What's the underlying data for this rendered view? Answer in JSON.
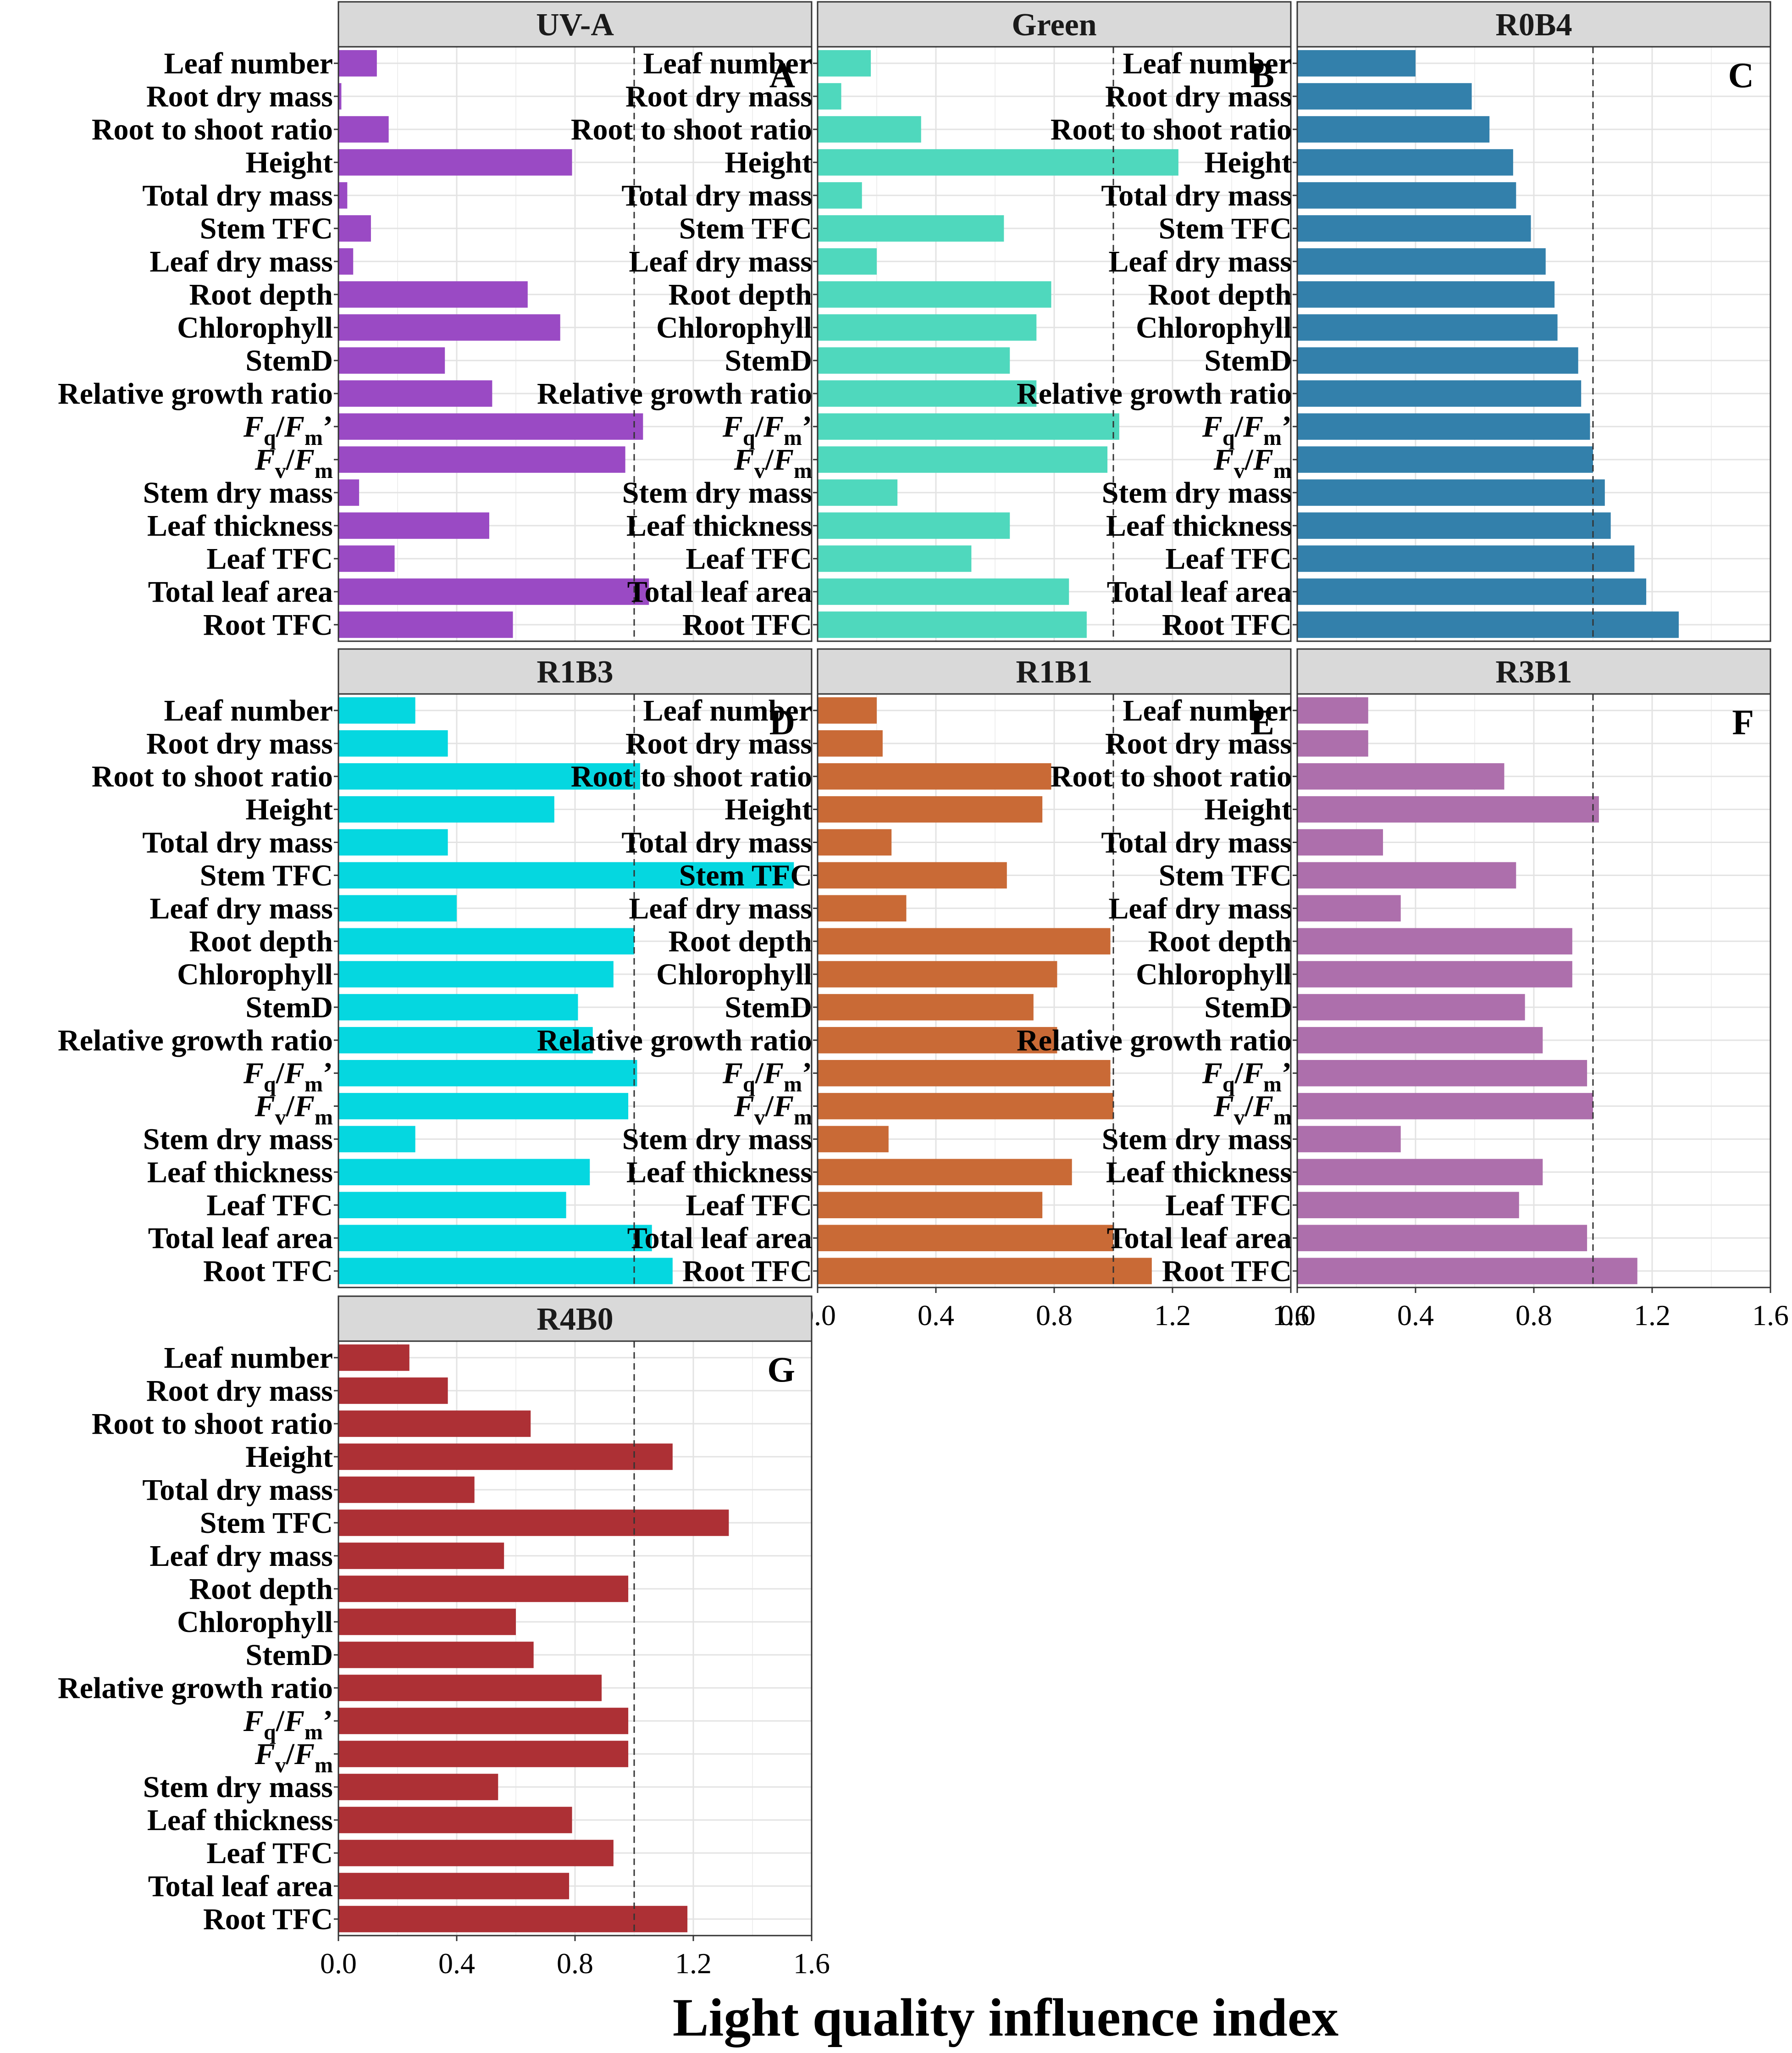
{
  "chart_data": {
    "type": "bar",
    "orientation": "horizontal",
    "xlabel": "Light quality influence index",
    "xlim": [
      0,
      1.6
    ],
    "xticks": [
      "0.0",
      "0.4",
      "0.8",
      "1.2",
      "1.6"
    ],
    "reference_line": 1.0,
    "categories": [
      {
        "text": "Leaf number"
      },
      {
        "text": "Root dry mass"
      },
      {
        "text": "Root to shoot ratio"
      },
      {
        "text": "Height"
      },
      {
        "text": "Total dry mass"
      },
      {
        "text": "Stem TFC"
      },
      {
        "text": "Leaf dry mass"
      },
      {
        "text": "Root depth"
      },
      {
        "text": "Chlorophyll"
      },
      {
        "text": "StemD"
      },
      {
        "text": "Relative growth ratio"
      },
      {
        "text": "Fq/Fm’",
        "main1": "F",
        "sub1": "q",
        "mid": "/",
        "main2": "F",
        "sub2": "m",
        "suffix": "’"
      },
      {
        "text": "Fv/Fm",
        "main1": "F",
        "sub1": "v",
        "mid": "/",
        "main2": "F",
        "sub2": "m",
        "suffix": ""
      },
      {
        "text": "Stem dry mass"
      },
      {
        "text": "Leaf thickness"
      },
      {
        "text": "Leaf TFC"
      },
      {
        "text": "Total leaf area"
      },
      {
        "text": "Root TFC"
      }
    ],
    "panels": [
      {
        "tag": "A",
        "title": "UV-A",
        "color": "#9a4ac4",
        "values": [
          0.13,
          0.01,
          0.17,
          0.79,
          0.03,
          0.11,
          0.05,
          0.64,
          0.75,
          0.36,
          0.52,
          1.03,
          0.97,
          0.07,
          0.51,
          0.19,
          1.05,
          0.59
        ]
      },
      {
        "tag": "B",
        "title": "Green",
        "color": "#4fd8bd",
        "values": [
          0.18,
          0.08,
          0.35,
          1.22,
          0.15,
          0.63,
          0.2,
          0.79,
          0.74,
          0.65,
          0.74,
          1.02,
          0.98,
          0.27,
          0.65,
          0.52,
          0.85,
          0.91
        ]
      },
      {
        "tag": "C",
        "title": "R0B4",
        "color": "#3380ab",
        "values": [
          0.4,
          0.59,
          0.65,
          0.73,
          0.74,
          0.79,
          0.84,
          0.87,
          0.88,
          0.95,
          0.96,
          0.99,
          1.0,
          1.04,
          1.06,
          1.14,
          1.18,
          1.29
        ]
      },
      {
        "tag": "D",
        "title": "R1B3",
        "color": "#05d7e0",
        "values": [
          0.26,
          0.37,
          1.02,
          0.73,
          0.37,
          1.54,
          0.4,
          1.0,
          0.93,
          0.81,
          0.86,
          1.01,
          0.98,
          0.26,
          0.85,
          0.77,
          1.06,
          1.13
        ]
      },
      {
        "tag": "E",
        "title": "R1B1",
        "color": "#c96a36",
        "values": [
          0.2,
          0.22,
          0.79,
          0.76,
          0.25,
          0.64,
          0.3,
          0.99,
          0.81,
          0.73,
          0.81,
          0.99,
          1.0,
          0.24,
          0.86,
          0.76,
          1.0,
          1.13
        ]
      },
      {
        "tag": "F",
        "title": "R3B1",
        "color": "#ad6fac",
        "values": [
          0.24,
          0.24,
          0.7,
          1.02,
          0.29,
          0.74,
          0.35,
          0.93,
          0.93,
          0.77,
          0.83,
          0.98,
          1.0,
          0.35,
          0.83,
          0.75,
          0.98,
          1.15
        ]
      },
      {
        "tag": "G",
        "title": "R4B0",
        "color": "#ad3035",
        "values": [
          0.24,
          0.37,
          0.65,
          1.13,
          0.46,
          1.32,
          0.56,
          0.98,
          0.6,
          0.66,
          0.89,
          0.98,
          0.98,
          0.54,
          0.79,
          0.93,
          0.78,
          1.18
        ]
      }
    ]
  }
}
